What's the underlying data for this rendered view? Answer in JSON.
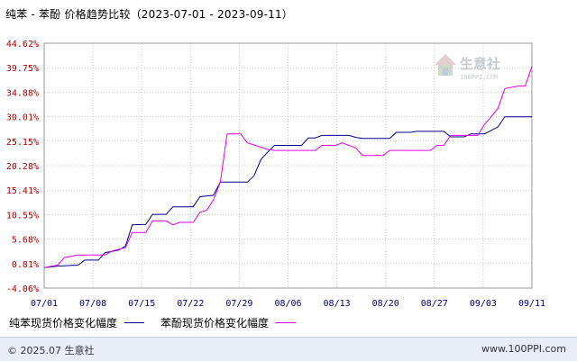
{
  "header": {
    "title": "纯苯 - 苯酚 价格趋势比较（2023-07-01 - 2023-09-11）"
  },
  "watermark": {
    "brand": "生意社",
    "site": "100PPI.COM"
  },
  "colors": {
    "series1": "#00008b",
    "series2": "#e600e6",
    "grid": "#c8c8c8",
    "ytick": "#b00000",
    "xtick": "#000080"
  },
  "chart_data": {
    "type": "line",
    "title": "纯苯 - 苯酚 价格趋势比较（2023-07-01 - 2023-09-11）",
    "y_ticks": [
      "44.62%",
      "39.75%",
      "34.88%",
      "30.01%",
      "25.15%",
      "20.28%",
      "15.41%",
      "10.55%",
      "5.68%",
      "0.81%",
      "-4.06%"
    ],
    "ylim": [
      -4.06,
      44.62
    ],
    "x_ticks": [
      "07/01",
      "07/08",
      "07/15",
      "07/22",
      "07/29",
      "08/06",
      "08/13",
      "08/20",
      "08/27",
      "09/03",
      "09/11"
    ],
    "x_start": "2023-07-01",
    "x_end": "2023-09-11",
    "grid": true,
    "legend": "bottom-left",
    "series": [
      {
        "name": "纯苯现货价格变化幅度",
        "color": "#00008b",
        "points": [
          [
            "2023-07-01",
            0
          ],
          [
            "2023-07-03",
            0.3
          ],
          [
            "2023-07-06",
            0.5
          ],
          [
            "2023-07-07",
            1.5
          ],
          [
            "2023-07-09",
            1.5
          ],
          [
            "2023-07-10",
            3.0
          ],
          [
            "2023-07-12",
            3.5
          ],
          [
            "2023-07-13",
            4.3
          ],
          [
            "2023-07-14",
            8.5
          ],
          [
            "2023-07-16",
            8.6
          ],
          [
            "2023-07-17",
            10.6
          ],
          [
            "2023-07-19",
            10.6
          ],
          [
            "2023-07-20",
            12.1
          ],
          [
            "2023-07-23",
            12.1
          ],
          [
            "2023-07-24",
            14.1
          ],
          [
            "2023-07-26",
            14.4
          ],
          [
            "2023-07-27",
            17.0
          ],
          [
            "2023-07-31",
            17.0
          ],
          [
            "2023-08-01",
            18.3
          ],
          [
            "2023-08-02",
            21.5
          ],
          [
            "2023-08-03",
            23.0
          ],
          [
            "2023-08-04",
            24.3
          ],
          [
            "2023-08-08",
            24.3
          ],
          [
            "2023-08-09",
            25.8
          ],
          [
            "2023-08-10",
            25.8
          ],
          [
            "2023-08-11",
            26.3
          ],
          [
            "2023-08-15",
            26.3
          ],
          [
            "2023-08-16",
            25.9
          ],
          [
            "2023-08-17",
            25.7
          ],
          [
            "2023-08-21",
            25.7
          ],
          [
            "2023-08-22",
            26.9
          ],
          [
            "2023-08-24",
            26.9
          ],
          [
            "2023-08-25",
            27.1
          ],
          [
            "2023-08-29",
            27.1
          ],
          [
            "2023-08-30",
            26.0
          ],
          [
            "2023-09-01",
            26.0
          ],
          [
            "2023-09-02",
            26.6
          ],
          [
            "2023-09-04",
            26.6
          ],
          [
            "2023-09-05",
            27.3
          ],
          [
            "2023-09-06",
            28.0
          ],
          [
            "2023-09-07",
            30.0
          ],
          [
            "2023-09-11",
            30.0
          ]
        ]
      },
      {
        "name": "苯酚现货价格变化幅度",
        "color": "#e600e6",
        "points": [
          [
            "2023-07-01",
            0
          ],
          [
            "2023-07-03",
            0.5
          ],
          [
            "2023-07-04",
            2.0
          ],
          [
            "2023-07-06",
            2.5
          ],
          [
            "2023-07-10",
            2.5
          ],
          [
            "2023-07-11",
            3.3
          ],
          [
            "2023-07-13",
            4.0
          ],
          [
            "2023-07-14",
            7.0
          ],
          [
            "2023-07-16",
            7.0
          ],
          [
            "2023-07-17",
            9.3
          ],
          [
            "2023-07-19",
            9.3
          ],
          [
            "2023-07-20",
            8.5
          ],
          [
            "2023-07-21",
            9.0
          ],
          [
            "2023-07-23",
            9.0
          ],
          [
            "2023-07-24",
            11.0
          ],
          [
            "2023-07-25",
            11.4
          ],
          [
            "2023-07-26",
            13.5
          ],
          [
            "2023-07-27",
            17.0
          ],
          [
            "2023-07-28",
            26.6
          ],
          [
            "2023-07-30",
            26.6
          ],
          [
            "2023-07-31",
            24.8
          ],
          [
            "2023-08-01",
            24.4
          ],
          [
            "2023-08-03",
            23.5
          ],
          [
            "2023-08-04",
            23.3
          ],
          [
            "2023-08-10",
            23.3
          ],
          [
            "2023-08-11",
            24.3
          ],
          [
            "2023-08-13",
            24.3
          ],
          [
            "2023-08-14",
            24.8
          ],
          [
            "2023-08-16",
            23.8
          ],
          [
            "2023-08-17",
            22.3
          ],
          [
            "2023-08-20",
            22.3
          ],
          [
            "2023-08-21",
            23.3
          ],
          [
            "2023-08-27",
            23.3
          ],
          [
            "2023-08-28",
            24.3
          ],
          [
            "2023-08-29",
            24.3
          ],
          [
            "2023-08-30",
            26.3
          ],
          [
            "2023-09-03",
            26.3
          ],
          [
            "2023-09-04",
            28.5
          ],
          [
            "2023-09-05",
            30.0
          ],
          [
            "2023-09-06",
            31.7
          ],
          [
            "2023-09-07",
            35.6
          ],
          [
            "2023-09-09",
            36.1
          ],
          [
            "2023-09-10",
            36.1
          ],
          [
            "2023-09-11",
            40.0
          ]
        ]
      }
    ]
  },
  "footer": {
    "copyright": "© 2025.07 生意社",
    "site": "www.100PPI.com"
  }
}
